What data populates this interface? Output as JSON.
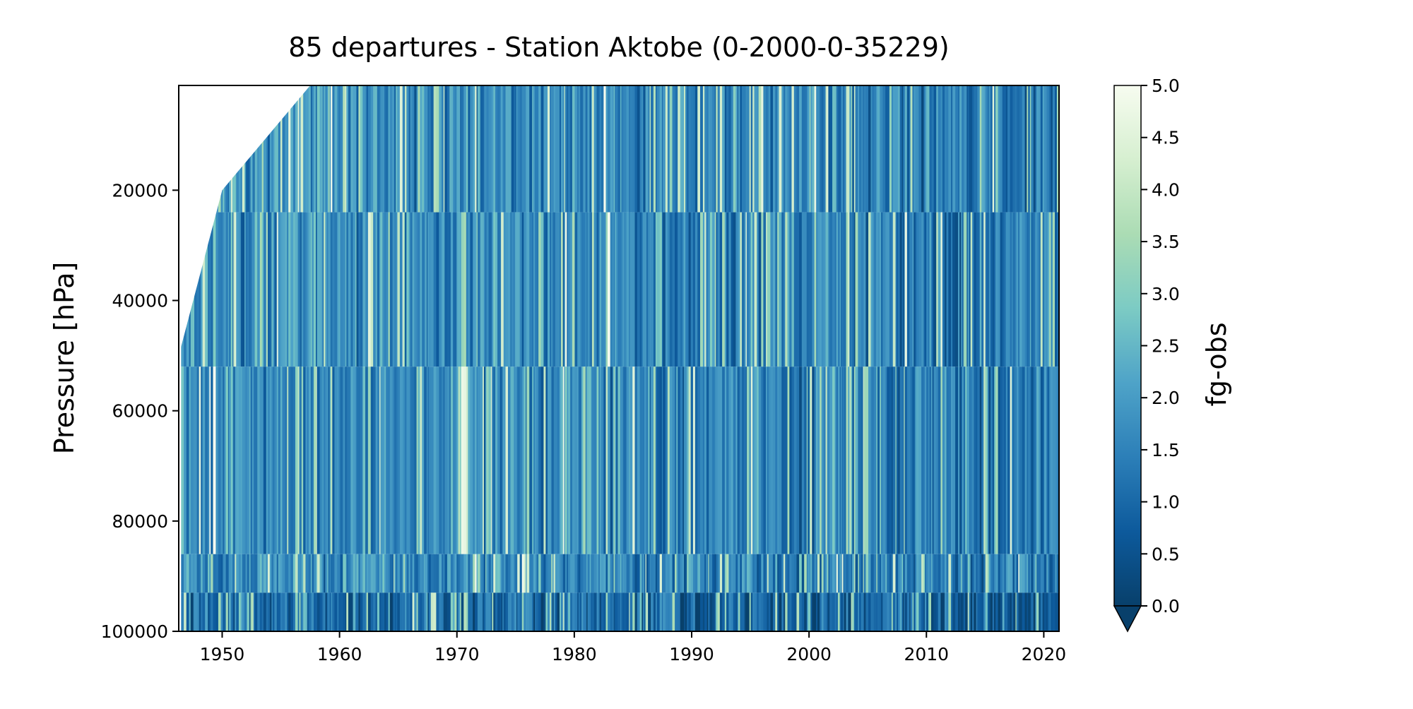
{
  "chart_data": {
    "type": "heatmap",
    "title": "85 departures - Station Aktobe (0-2000-0-35229)",
    "xlabel": "",
    "ylabel": "Pressure [hPa]",
    "colorbar_label": "fg-obs",
    "xlim": [
      1946.3,
      2021.3
    ],
    "ylim": [
      1000,
      100000
    ],
    "y_inverted": true,
    "x_ticks": [
      "1950",
      "1960",
      "1970",
      "1980",
      "1990",
      "2000",
      "2010",
      "2020"
    ],
    "y_ticks": [
      "20000",
      "40000",
      "60000",
      "80000",
      "100000"
    ],
    "colorbar_ticks": [
      "0.0",
      "0.5",
      "1.0",
      "1.5",
      "2.0",
      "2.5",
      "3.0",
      "3.5",
      "4.0",
      "4.5",
      "5.0"
    ],
    "colorbar_range": [
      0,
      5
    ],
    "colorbar_extend": "min",
    "colormap": [
      "#08406b",
      "#0d5a9c",
      "#2c7fb8",
      "#4ea3c8",
      "#7ccbc4",
      "#abdcb4",
      "#d6efd0",
      "#f7fcf0"
    ],
    "data_start_year": 1946.5,
    "grid": false
  }
}
